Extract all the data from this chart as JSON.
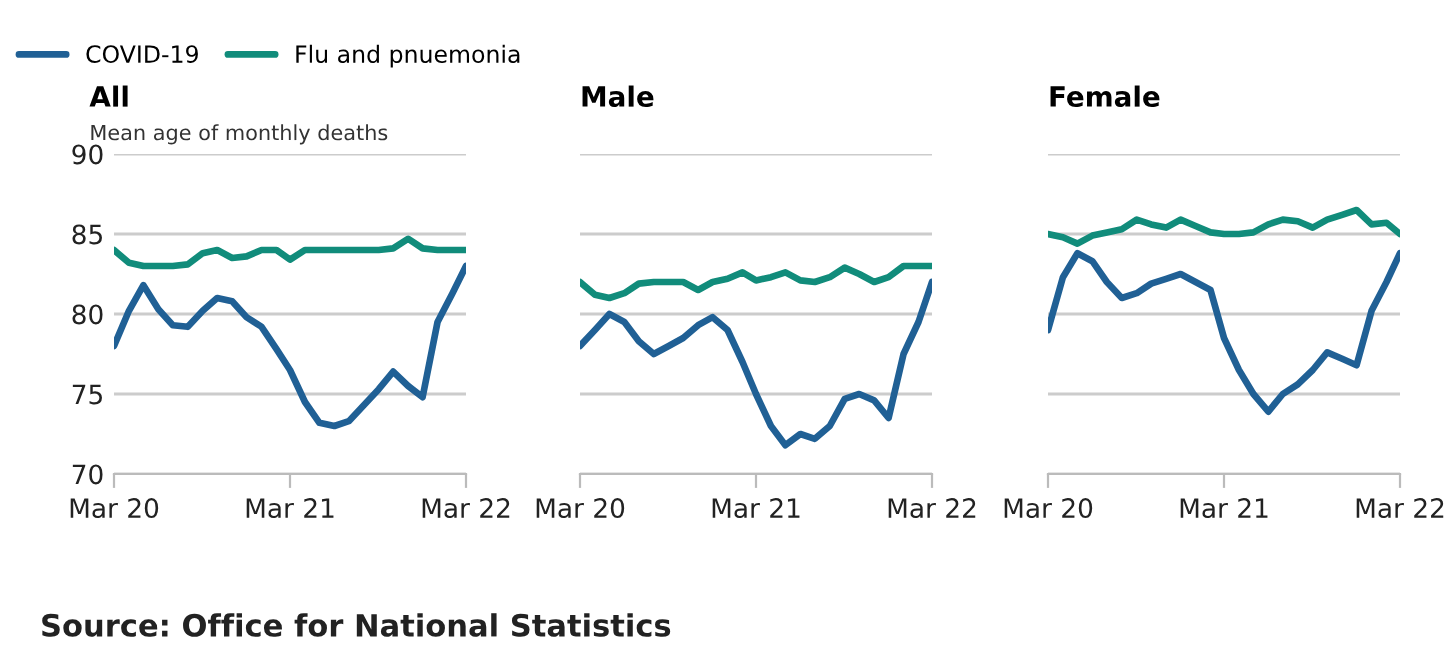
{
  "chart_data": [
    {
      "type": "line",
      "title": "All",
      "ylabel": "Mean age of monthly deaths",
      "legend": "top left",
      "grid": "y",
      "tick_labels": "xy",
      "x": [
        "2020-03",
        "2020-04",
        "2020-05",
        "2020-06",
        "2020-07",
        "2020-08",
        "2020-09",
        "2020-10",
        "2020-11",
        "2020-12",
        "2021-01",
        "2021-02",
        "2021-03",
        "2021-04",
        "2021-05",
        "2021-06",
        "2021-07",
        "2021-08",
        "2021-09",
        "2021-10",
        "2021-11",
        "2021-12",
        "2022-01",
        "2022-02",
        "2022-03"
      ],
      "xlim": [
        "2020-03",
        "2022-03"
      ],
      "xticks": [
        {
          "value": "2020-03",
          "label": "Mar 20"
        },
        {
          "value": "2021-03",
          "label": "Mar 21"
        },
        {
          "value": "2022-03",
          "label": "Mar 22"
        }
      ],
      "ylim": [
        70,
        90
      ],
      "yticks": [
        70,
        75,
        80,
        85,
        90
      ],
      "series": [
        {
          "name": "COVID-19",
          "color": "#206095",
          "values": [
            78,
            80.2,
            81.8,
            80.3,
            79.3,
            79.2,
            80.2,
            81,
            80.8,
            79.8,
            79.2,
            77.8,
            76.5,
            74.5,
            73.2,
            73,
            73.3,
            74.3,
            75.3,
            76.4,
            75.5,
            74.8,
            79.5,
            81.3,
            83
          ]
        },
        {
          "name": "Flu and pnuemonia",
          "color": "#118c7b",
          "values": [
            84,
            83.2,
            83,
            83,
            83,
            83.1,
            83.8,
            84,
            83.5,
            83.6,
            84,
            84,
            83.4,
            84,
            84,
            84,
            84,
            84,
            84,
            84.1,
            84.7,
            84.1,
            84,
            84,
            84
          ]
        }
      ],
      "annotations": [
        "Source: Office for National Statistics"
      ]
    },
    {
      "type": "line",
      "title": "Male",
      "grid": "y",
      "tick_labels": "x",
      "x": [
        "2020-03",
        "2020-04",
        "2020-05",
        "2020-06",
        "2020-07",
        "2020-08",
        "2020-09",
        "2020-10",
        "2020-11",
        "2020-12",
        "2021-01",
        "2021-02",
        "2021-03",
        "2021-04",
        "2021-05",
        "2021-06",
        "2021-07",
        "2021-08",
        "2021-09",
        "2021-10",
        "2021-11",
        "2021-12",
        "2022-01",
        "2022-02",
        "2022-03"
      ],
      "xlim": [
        "2020-03",
        "2022-03"
      ],
      "xticks": [
        {
          "value": "2020-03",
          "label": "Mar 20"
        },
        {
          "value": "2021-03",
          "label": "Mar 21"
        },
        {
          "value": "2022-03",
          "label": "Mar 22"
        }
      ],
      "ylim": [
        70,
        90
      ],
      "yticks": [
        70,
        75,
        80,
        85,
        90
      ],
      "series": [
        {
          "color": "#206095",
          "values": [
            78,
            79,
            80,
            79.5,
            78.3,
            77.5,
            78,
            78.5,
            79.3,
            79.8,
            79,
            77,
            75,
            73,
            71.8,
            72.5,
            72.2,
            73,
            74.7,
            75,
            74.6,
            73.5,
            77.5,
            79.5,
            82
          ]
        },
        {
          "color": "#118c7b",
          "values": [
            82,
            81.2,
            81,
            81.3,
            81.9,
            82,
            82,
            82,
            81.5,
            82,
            82.2,
            82.6,
            82.1,
            82.3,
            82.6,
            82.1,
            82,
            82.3,
            82.9,
            82.5,
            82,
            82.3,
            83,
            83,
            83
          ]
        }
      ]
    },
    {
      "type": "line",
      "title": "Female",
      "grid": "y",
      "tick_labels": "x",
      "x": [
        "2020-03",
        "2020-04",
        "2020-05",
        "2020-06",
        "2020-07",
        "2020-08",
        "2020-09",
        "2020-10",
        "2020-11",
        "2020-12",
        "2021-01",
        "2021-02",
        "2021-03",
        "2021-04",
        "2021-05",
        "2021-06",
        "2021-07",
        "2021-08",
        "2021-09",
        "2021-10",
        "2021-11",
        "2021-12",
        "2022-01",
        "2022-02",
        "2022-03"
      ],
      "xlim": [
        "2020-03",
        "2022-03"
      ],
      "xticks": [
        {
          "value": "2020-03",
          "label": "Mar 20"
        },
        {
          "value": "2021-03",
          "label": "Mar 21"
        },
        {
          "value": "2022-03",
          "label": "Mar 22"
        }
      ],
      "ylim": [
        70,
        90
      ],
      "yticks": [
        70,
        75,
        80,
        85,
        90
      ],
      "series": [
        {
          "color": "#206095",
          "values": [
            79,
            82.3,
            83.8,
            83.3,
            82,
            81,
            81.3,
            81.9,
            82.2,
            82.5,
            82,
            81.5,
            78.5,
            76.5,
            75,
            73.9,
            75,
            75.6,
            76.5,
            77.6,
            77.2,
            76.8,
            80.2,
            82,
            83.8
          ]
        },
        {
          "color": "#118c7b",
          "values": [
            85,
            84.8,
            84.4,
            84.9,
            85.1,
            85.3,
            85.9,
            85.6,
            85.4,
            85.9,
            85.5,
            85.1,
            85,
            85,
            85.1,
            85.6,
            85.9,
            85.8,
            85.4,
            85.9,
            86.2,
            86.5,
            85.6,
            85.7,
            85
          ]
        }
      ]
    }
  ]
}
